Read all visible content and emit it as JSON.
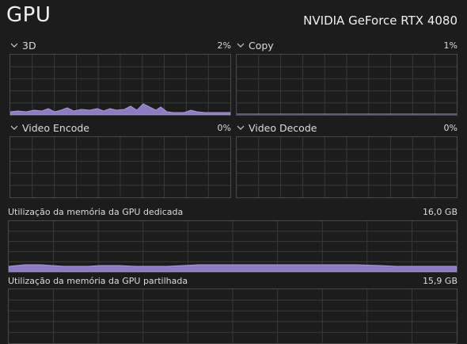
{
  "header": {
    "title": "GPU",
    "gpu_name": "NVIDIA GeForce RTX 4080"
  },
  "engines": [
    {
      "label": "3D",
      "percent": "2%",
      "usage_fraction": 0.02
    },
    {
      "label": "Copy",
      "percent": "1%",
      "usage_fraction": 0.01
    },
    {
      "label": "Video Encode",
      "percent": "0%",
      "usage_fraction": 0.0
    },
    {
      "label": "Video Decode",
      "percent": "0%",
      "usage_fraction": 0.0
    }
  ],
  "memory": {
    "dedicated": {
      "label": "Utilização da memória da GPU dedicada",
      "value": "16,0 GB"
    },
    "shared": {
      "label": "Utilização da memória da GPU partilhada",
      "value": "15,9 GB"
    }
  },
  "colors": {
    "accent_fill": "#8e7cc3",
    "accent_line": "#a897d8",
    "grid": "#3a3a3a",
    "border": "#4a4a4a"
  },
  "icons": {
    "expand": "chevron-down-icon"
  }
}
